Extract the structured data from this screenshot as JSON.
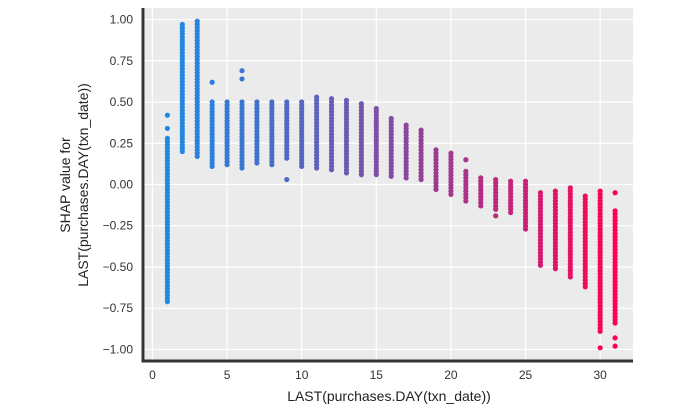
{
  "chart_data": {
    "type": "scatter",
    "xlabel": "LAST(purchases.DAY(txn_date))",
    "ylabel_lines": [
      "SHAP value for",
      "LAST(purchases.DAY(txn_date))"
    ],
    "xlim": [
      -0.5,
      32.2
    ],
    "ylim": [
      -1.07,
      1.07
    ],
    "x_ticks": [
      0,
      5,
      10,
      15,
      20,
      25,
      30
    ],
    "y_ticks": [
      1.0,
      0.75,
      0.5,
      0.25,
      0.0,
      -0.25,
      -0.5,
      -0.75,
      -1.0
    ],
    "y_tick_labels": [
      "1.00",
      "0.75",
      "0.50",
      "0.25",
      "0.00",
      "−0.25",
      "−0.50",
      "−0.75",
      "−1.00"
    ],
    "grid": true,
    "background_color": "#ebebeb",
    "color_scale": [
      "#1e88e5",
      "#ff0052"
    ],
    "points_by_day": [
      {
        "x": 1,
        "min": -0.71,
        "max": 0.28,
        "outliers": [
          0.34,
          0.42
        ]
      },
      {
        "x": 2,
        "min": 0.2,
        "max": 0.97,
        "outliers": []
      },
      {
        "x": 3,
        "min": 0.17,
        "max": 0.99,
        "outliers": []
      },
      {
        "x": 4,
        "min": 0.11,
        "max": 0.5,
        "outliers": [
          0.62
        ]
      },
      {
        "x": 5,
        "min": 0.12,
        "max": 0.5,
        "outliers": []
      },
      {
        "x": 6,
        "min": 0.1,
        "max": 0.5,
        "outliers": [
          0.64,
          0.69
        ]
      },
      {
        "x": 7,
        "min": 0.13,
        "max": 0.5,
        "outliers": []
      },
      {
        "x": 8,
        "min": 0.12,
        "max": 0.5,
        "outliers": []
      },
      {
        "x": 9,
        "min": 0.16,
        "max": 0.5,
        "outliers": [
          0.03
        ]
      },
      {
        "x": 10,
        "min": 0.11,
        "max": 0.5,
        "outliers": []
      },
      {
        "x": 11,
        "min": 0.1,
        "max": 0.53,
        "outliers": []
      },
      {
        "x": 12,
        "min": 0.09,
        "max": 0.52,
        "outliers": []
      },
      {
        "x": 13,
        "min": 0.07,
        "max": 0.51,
        "outliers": []
      },
      {
        "x": 14,
        "min": 0.06,
        "max": 0.49,
        "outliers": []
      },
      {
        "x": 15,
        "min": 0.06,
        "max": 0.46,
        "outliers": []
      },
      {
        "x": 16,
        "min": 0.05,
        "max": 0.4,
        "outliers": []
      },
      {
        "x": 17,
        "min": 0.04,
        "max": 0.36,
        "outliers": []
      },
      {
        "x": 18,
        "min": 0.03,
        "max": 0.33,
        "outliers": []
      },
      {
        "x": 19,
        "min": -0.03,
        "max": 0.21,
        "outliers": []
      },
      {
        "x": 20,
        "min": -0.06,
        "max": 0.19,
        "outliers": []
      },
      {
        "x": 21,
        "min": -0.1,
        "max": 0.08,
        "outliers": [
          0.15
        ]
      },
      {
        "x": 22,
        "min": -0.13,
        "max": 0.04,
        "outliers": []
      },
      {
        "x": 23,
        "min": -0.15,
        "max": 0.03,
        "outliers": [
          -0.19
        ]
      },
      {
        "x": 24,
        "min": -0.17,
        "max": 0.02,
        "outliers": []
      },
      {
        "x": 25,
        "min": -0.27,
        "max": 0.02,
        "outliers": []
      },
      {
        "x": 26,
        "min": -0.49,
        "max": -0.05,
        "outliers": []
      },
      {
        "x": 27,
        "min": -0.51,
        "max": -0.04,
        "outliers": []
      },
      {
        "x": 28,
        "min": -0.56,
        "max": -0.02,
        "outliers": []
      },
      {
        "x": 29,
        "min": -0.62,
        "max": -0.07,
        "outliers": []
      },
      {
        "x": 30,
        "min": -0.89,
        "max": -0.04,
        "outliers": [
          -0.99
        ]
      },
      {
        "x": 31,
        "min": -0.84,
        "max": -0.16,
        "outliers": [
          -0.05,
          -0.93,
          -0.98
        ]
      }
    ]
  }
}
